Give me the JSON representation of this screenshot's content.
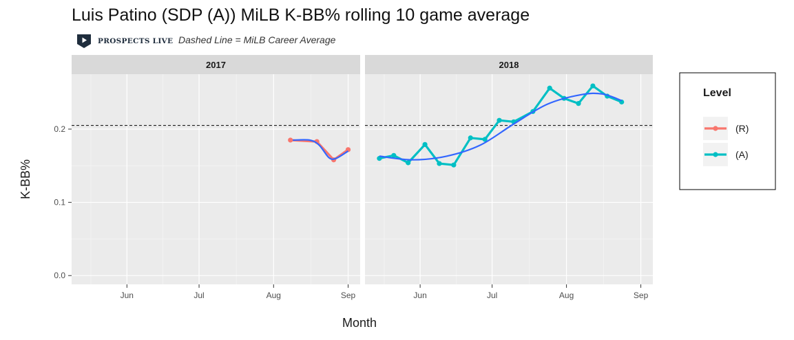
{
  "header": {
    "title": "Luis Patino (SDP (A)) MiLB K-BB% rolling 10 game average",
    "logo_text": "PROSPECTS LIVE",
    "subtitle": "Dashed Line = MiLB Career Average"
  },
  "colors": {
    "panel_bg": "#EBEBEB",
    "strip_bg": "#D9D9D9",
    "grid_major": "#FFFFFF",
    "series_R": "#F8766D",
    "series_A": "#00BFC4",
    "smooth": "#3366FF",
    "logo_dark": "#1F2D3D"
  },
  "chart_data": {
    "type": "line",
    "xlabel": "Month",
    "ylabel": "K-BB%",
    "ylim": [
      -0.012,
      0.275
    ],
    "yticks": [
      0.0,
      0.1,
      0.2
    ],
    "ytick_labels": [
      "0.0",
      "0.1",
      "0.2"
    ],
    "career_average": 0.205,
    "legend": {
      "title": "Level",
      "position": "right",
      "entries": [
        "(R)",
        "(A)"
      ]
    },
    "facets": [
      {
        "label": "2017",
        "xlim": [
          "2017-05-09",
          "2017-09-06"
        ],
        "xticks": [
          "2017-06-01",
          "2017-07-01",
          "2017-08-01",
          "2017-09-01"
        ],
        "xtick_labels": [
          "Jun",
          "Jul",
          "Aug",
          "Sep"
        ],
        "series": [
          {
            "name": "(R)",
            "x": [
              "2017-08-08",
              "2017-08-19",
              "2017-08-26",
              "2017-09-01"
            ],
            "y": [
              0.185,
              0.183,
              0.158,
              0.172
            ]
          }
        ],
        "smooth": [
          {
            "x": [
              "2017-08-09",
              "2017-08-16",
              "2017-08-20",
              "2017-08-24",
              "2017-08-27",
              "2017-09-01"
            ],
            "y": [
              0.185,
              0.185,
              0.178,
              0.161,
              0.16,
              0.17
            ]
          }
        ]
      },
      {
        "label": "2018",
        "xlim": [
          "2018-05-09",
          "2018-09-06"
        ],
        "xticks": [
          "2018-06-01",
          "2018-07-01",
          "2018-08-01",
          "2018-09-01"
        ],
        "xtick_labels": [
          "Jun",
          "Jul",
          "Aug",
          "Sep"
        ],
        "series": [
          {
            "name": "(A)",
            "x": [
              "2018-05-15",
              "2018-05-21",
              "2018-05-27",
              "2018-06-03",
              "2018-06-09",
              "2018-06-15",
              "2018-06-22",
              "2018-06-28",
              "2018-07-04",
              "2018-07-10",
              "2018-07-18",
              "2018-07-25",
              "2018-07-31",
              "2018-08-06",
              "2018-08-12",
              "2018-08-18",
              "2018-08-24"
            ],
            "y": [
              0.16,
              0.164,
              0.154,
              0.179,
              0.153,
              0.151,
              0.188,
              0.186,
              0.212,
              0.21,
              0.224,
              0.256,
              0.242,
              0.235,
              0.259,
              0.245,
              0.237
            ]
          }
        ],
        "smooth": [
          {
            "x": [
              "2018-05-15",
              "2018-05-29",
              "2018-06-12",
              "2018-06-26",
              "2018-07-10",
              "2018-07-24",
              "2018-08-07",
              "2018-08-16",
              "2018-08-24"
            ],
            "y": [
              0.163,
              0.158,
              0.163,
              0.178,
              0.207,
              0.234,
              0.247,
              0.248,
              0.239
            ]
          }
        ]
      }
    ]
  }
}
